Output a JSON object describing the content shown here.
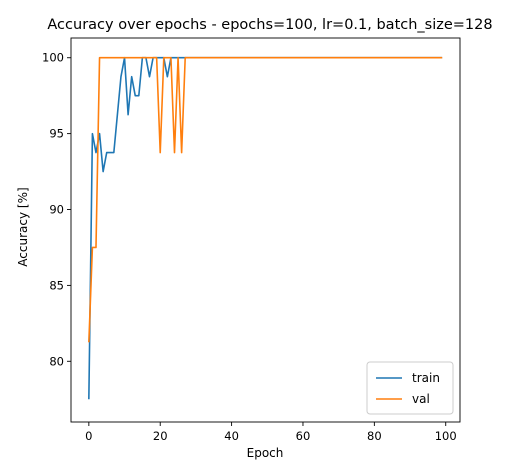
{
  "chart_data": {
    "type": "line",
    "title": "Accuracy over epochs - epochs=100, lr=0.1, batch_size=128",
    "xlabel": "Epoch",
    "ylabel": "Accuracy [%]",
    "xlim": [
      -5,
      104
    ],
    "ylim": [
      76.0,
      101.3
    ],
    "xticks": [
      0,
      20,
      40,
      60,
      80,
      100
    ],
    "yticks": [
      80,
      85,
      90,
      95,
      100
    ],
    "grid": false,
    "legend_position": "lower right",
    "series": [
      {
        "name": "train",
        "color": "#1f77b4",
        "x": [
          0,
          1,
          2,
          3,
          4,
          5,
          6,
          7,
          8,
          9,
          10,
          11,
          12,
          13,
          14,
          15,
          16,
          17,
          18,
          19,
          20,
          21,
          22,
          23,
          24,
          25,
          26,
          27,
          28,
          99
        ],
        "y": [
          77.5,
          95.0,
          93.75,
          95.0,
          92.5,
          93.75,
          93.75,
          93.75,
          96.25,
          98.75,
          100.0,
          96.25,
          98.75,
          97.5,
          97.5,
          100.0,
          100.0,
          98.75,
          100.0,
          100.0,
          100.0,
          100.0,
          98.75,
          100.0,
          100.0,
          100.0,
          100.0,
          100.0,
          100.0,
          100.0
        ]
      },
      {
        "name": "val",
        "color": "#ff7f0e",
        "x": [
          0,
          1,
          2,
          3,
          4,
          19,
          20,
          21,
          22,
          23,
          24,
          25,
          26,
          27,
          99
        ],
        "y": [
          81.25,
          87.5,
          87.5,
          100.0,
          100.0,
          100.0,
          93.75,
          100.0,
          100.0,
          100.0,
          93.75,
          100.0,
          93.75,
          100.0,
          100.0
        ]
      }
    ]
  }
}
